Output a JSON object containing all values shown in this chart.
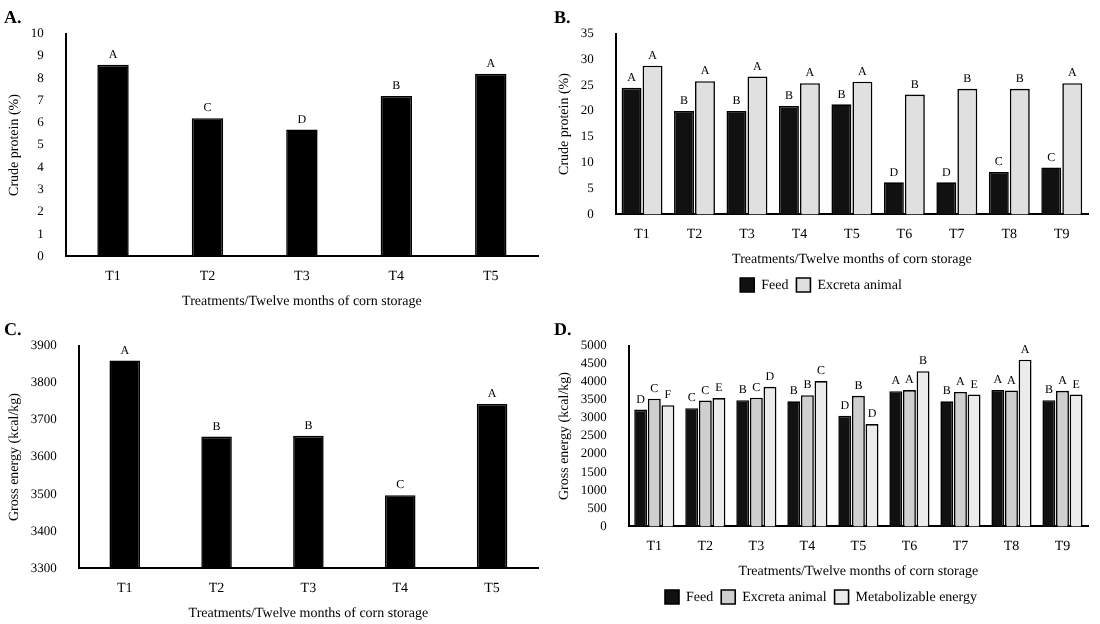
{
  "chart_data": [
    {
      "type": "bar",
      "title": "A.",
      "xlabel": "Treatments/Twelve months of corn storage",
      "ylabel": "Crude protein (%)",
      "categories": [
        "T1",
        "T2",
        "T3",
        "T4",
        "T5"
      ],
      "series": [
        {
          "color": "#000000",
          "values": [
            8.6,
            6.2,
            5.7,
            7.2,
            8.2
          ],
          "value_labels": [
            "A",
            "C",
            "D",
            "B",
            "A"
          ]
        }
      ],
      "ylim": [
        0,
        10
      ],
      "yticks": [
        0,
        1,
        2,
        3,
        4,
        5,
        6,
        7,
        8,
        9,
        10
      ],
      "grid": false,
      "legend": false
    },
    {
      "type": "bar",
      "title": "B.",
      "xlabel": "Treatments/Twelve months of corn storage",
      "ylabel": "Crude protein (%)",
      "categories": [
        "T1",
        "T2",
        "T3",
        "T4",
        "T5",
        "T6",
        "T7",
        "T8",
        "T9"
      ],
      "series": [
        {
          "name": "Feed",
          "color": "#111111",
          "values": [
            24.5,
            20,
            20,
            21,
            21.3,
            6.2,
            6.2,
            8.2,
            9.1
          ],
          "value_labels": [
            "A",
            "B",
            "B",
            "B",
            "B",
            "D",
            "D",
            "C",
            "C"
          ]
        },
        {
          "name": "Excreta animal",
          "color": "#e0e0e0",
          "values": [
            28.8,
            25.8,
            26.7,
            25.4,
            25.7,
            23.2,
            24.3,
            24.3,
            25.4
          ],
          "value_labels": [
            "A",
            "A",
            "A",
            "A",
            "A",
            "B",
            "B",
            "B",
            "A"
          ]
        }
      ],
      "ylim": [
        0,
        35
      ],
      "yticks": [
        0,
        5,
        10,
        15,
        20,
        25,
        30,
        35
      ],
      "grid": false,
      "legend": "bottom"
    },
    {
      "type": "bar",
      "title": "C.",
      "xlabel": "Treatments/Twelve months of corn storage",
      "ylabel": "Gross energy (kcal/kg)",
      "categories": [
        "T1",
        "T2",
        "T3",
        "T4",
        "T5"
      ],
      "series": [
        {
          "color": "#000000",
          "values": [
            3860,
            3655,
            3657,
            3497,
            3743
          ],
          "value_labels": [
            "A",
            "B",
            "B",
            "C",
            "A"
          ]
        }
      ],
      "ylim": [
        3300,
        3900
      ],
      "yticks": [
        3300,
        3400,
        3500,
        3600,
        3700,
        3800,
        3900
      ],
      "grid": false,
      "legend": false
    },
    {
      "type": "bar",
      "title": "D.",
      "xlabel": "Treatments/Twelve months of corn storage",
      "ylabel": "Gross energy (kcal/kg)",
      "categories": [
        "T1",
        "T2",
        "T3",
        "T4",
        "T5",
        "T6",
        "T7",
        "T8",
        "T9"
      ],
      "series": [
        {
          "name": "Feed",
          "color": "#111111",
          "values": [
            3230,
            3270,
            3490,
            3460,
            3060,
            3740,
            3460,
            3770,
            3490
          ],
          "value_labels": [
            "D",
            "C",
            "B",
            "B",
            "D",
            "A",
            "B",
            "A",
            "B"
          ]
        },
        {
          "name": "Excreta animal",
          "color": "#cfcfcf",
          "values": [
            3530,
            3480,
            3560,
            3630,
            3610,
            3770,
            3720,
            3760,
            3750
          ],
          "value_labels": [
            "C",
            "C",
            "C",
            "B",
            "B",
            "A",
            "A",
            "A",
            "A"
          ]
        },
        {
          "name": "Metabolizable energy",
          "color": "#ebebeb",
          "values": [
            3350,
            3550,
            3860,
            4020,
            2830,
            4290,
            3650,
            4610,
            3650
          ],
          "value_labels": [
            "F",
            "E",
            "D",
            "C",
            "D",
            "B",
            "E",
            "A",
            "E"
          ]
        }
      ],
      "ylim": [
        0,
        5000
      ],
      "yticks": [
        0,
        500,
        1000,
        1500,
        2000,
        2500,
        3000,
        3500,
        4000,
        4500,
        5000
      ],
      "grid": false,
      "legend": "bottom"
    }
  ]
}
